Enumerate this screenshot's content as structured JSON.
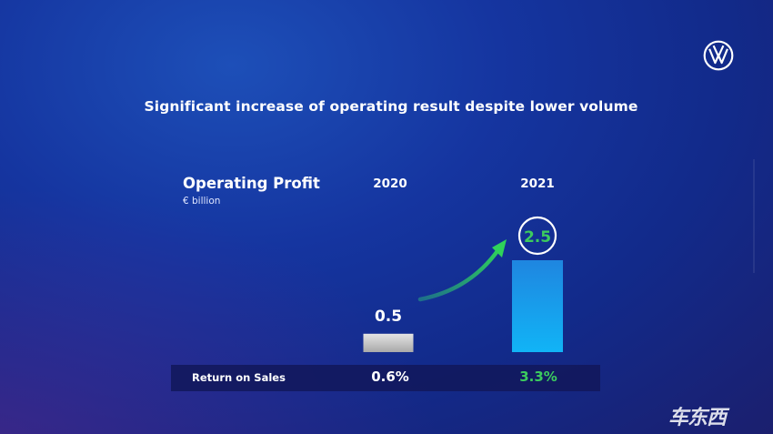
{
  "headline": "Significant increase of operating result despite lower volume",
  "chart_data": {
    "type": "bar",
    "title": "Operating Profit",
    "unit": "€ billion",
    "categories": [
      "2020",
      "2021"
    ],
    "values": [
      0.5,
      2.5
    ],
    "value_labels": [
      "0.5",
      "2.5"
    ],
    "bar_colors": [
      "#c9c9c9",
      "#1aa3f0"
    ],
    "highlight_color": "#3ccb5e"
  },
  "return_on_sales": {
    "label": "Return on Sales",
    "values": [
      "0.6%",
      "3.3%"
    ]
  },
  "watermark": "车东西",
  "icons": [
    "vw-logo-icon",
    "growth-arrow-icon"
  ]
}
